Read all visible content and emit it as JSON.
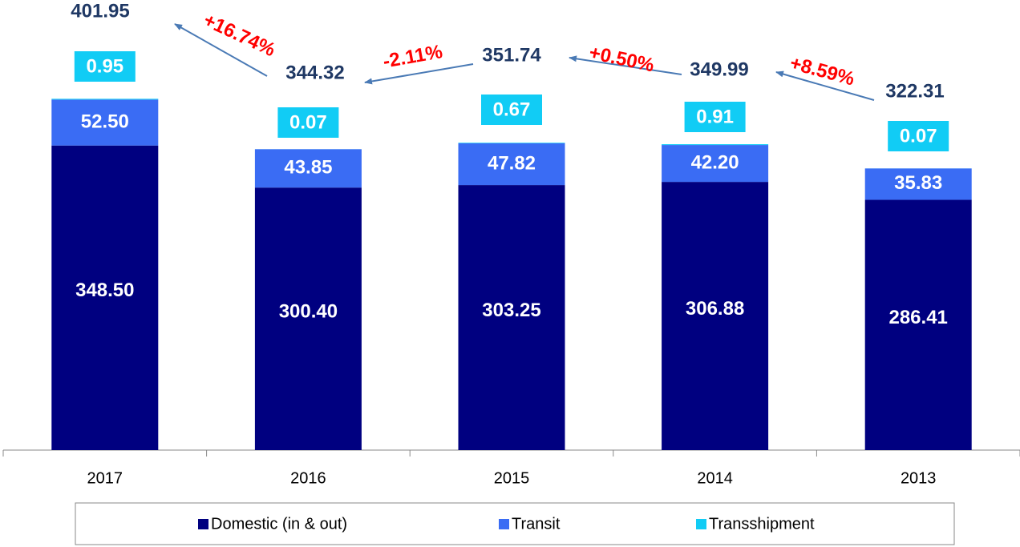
{
  "chart_data": {
    "type": "stacked_bar",
    "categories": [
      "2017",
      "2016",
      "2015",
      "2014",
      "2013"
    ],
    "series": [
      {
        "name": "Domestic (in & out)",
        "color": "#000080",
        "values": [
          348.5,
          300.4,
          303.25,
          306.88,
          286.41
        ],
        "value_labels": [
          "348.50",
          "300.40",
          "303.25",
          "306.88",
          "286.41"
        ]
      },
      {
        "name": "Transit",
        "color": "#3a6cf4",
        "values": [
          52.5,
          43.85,
          47.82,
          42.2,
          35.83
        ],
        "value_labels": [
          "52.50",
          "43.85",
          "47.82",
          "42.20",
          "35.83"
        ]
      },
      {
        "name": "Transshipment",
        "color": "#11ccf5",
        "values": [
          0.95,
          0.07,
          0.67,
          0.91,
          0.07
        ],
        "value_labels": [
          "0.95",
          "0.07",
          "0.67",
          "0.91",
          "0.07"
        ]
      }
    ],
    "totals": {
      "values": [
        401.95,
        344.32,
        351.74,
        349.99,
        322.31
      ]
    },
    "changes": {
      "values": [
        16.74,
        -2.11,
        0.5,
        8.59
      ],
      "value_labels": [
        "+16.74%",
        "-2.11%",
        "+0.50%",
        "+8.59%"
      ],
      "color": "#ff0000"
    },
    "ylim": [
      0,
      515
    ],
    "legend": "bottom"
  }
}
